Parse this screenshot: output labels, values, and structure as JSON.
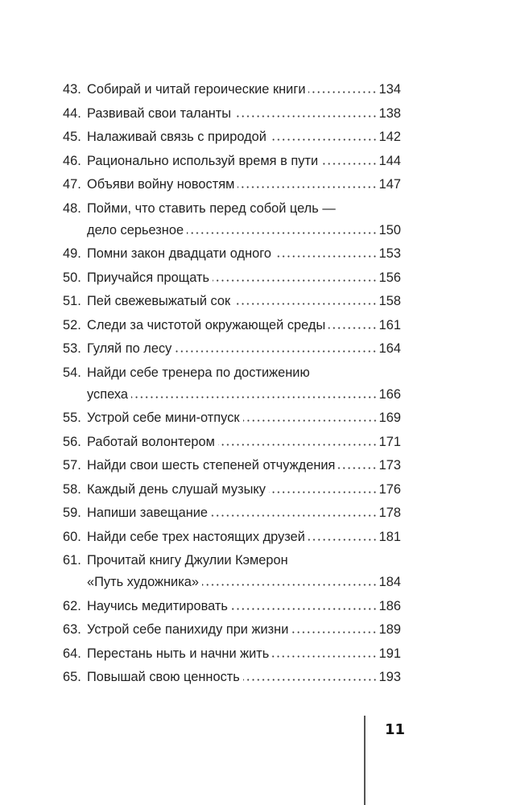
{
  "toc": {
    "entries": [
      {
        "num": "43.",
        "lines": [
          "Собирай и читай героические книги"
        ],
        "page": "134"
      },
      {
        "num": "44.",
        "lines": [
          "Развивай свои таланты"
        ],
        "page": "138"
      },
      {
        "num": "45.",
        "lines": [
          "Налаживай связь с природой"
        ],
        "page": "142"
      },
      {
        "num": "46.",
        "lines": [
          "Рационально используй время в пути"
        ],
        "page": "144"
      },
      {
        "num": "47.",
        "lines": [
          "Объяви войну новостям"
        ],
        "page": "147"
      },
      {
        "num": "48.",
        "lines": [
          "Пойми, что ставить перед собой цель —",
          "дело серьезное"
        ],
        "page": "150"
      },
      {
        "num": "49.",
        "lines": [
          "Помни закон двадцати одного"
        ],
        "page": "153"
      },
      {
        "num": "50.",
        "lines": [
          "Приучайся прощать"
        ],
        "page": "156"
      },
      {
        "num": "51.",
        "lines": [
          "Пей свежевыжатый сок"
        ],
        "page": "158"
      },
      {
        "num": "52.",
        "lines": [
          "Следи за чистотой окружающей среды"
        ],
        "page": "161"
      },
      {
        "num": "53.",
        "lines": [
          "Гуляй по лесу"
        ],
        "page": "164"
      },
      {
        "num": "54.",
        "lines": [
          "Найди себе тренера по достижению",
          "успеха"
        ],
        "page": "166"
      },
      {
        "num": "55.",
        "lines": [
          "Устрой себе мини-отпуск"
        ],
        "page": "169"
      },
      {
        "num": "56.",
        "lines": [
          "Работай волонтером"
        ],
        "page": "171"
      },
      {
        "num": "57.",
        "lines": [
          "Найди свои шесть степеней отчуждения"
        ],
        "page": "173"
      },
      {
        "num": "58.",
        "lines": [
          "Каждый день слушай музыку"
        ],
        "page": "176"
      },
      {
        "num": "59.",
        "lines": [
          "Напиши завещание"
        ],
        "page": "178"
      },
      {
        "num": "60.",
        "lines": [
          "Найди себе трех настоящих друзей"
        ],
        "page": "181"
      },
      {
        "num": "61.",
        "lines": [
          "Прочитай книгу Джулии Кэмерон",
          "«Путь художника»"
        ],
        "page": "184"
      },
      {
        "num": "62.",
        "lines": [
          "Научись медитировать"
        ],
        "page": "186"
      },
      {
        "num": "63.",
        "lines": [
          "Устрой себе панихиду при жизни"
        ],
        "page": "189"
      },
      {
        "num": "64.",
        "lines": [
          "Перестань ныть и начни жить"
        ],
        "page": "191"
      },
      {
        "num": "65.",
        "lines": [
          "Повышай свою ценность"
        ],
        "page": "193"
      }
    ]
  },
  "folio": {
    "page_number": "11"
  }
}
